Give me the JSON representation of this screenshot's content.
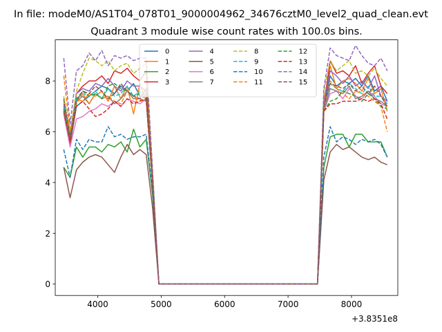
{
  "chart_data": {
    "type": "line",
    "suptitle": "In file: modeM0/AS1T04_078T01_9000004962_34676cztM0_level2_quad_clean.evt",
    "title": "Quadrant 3 module wise count rates with 100.0s bins.",
    "xlabel": "",
    "ylabel": "",
    "x_offset_label": "+3.8351e8",
    "xlim": [
      3330,
      8730
    ],
    "ylim": [
      -0.45,
      9.62
    ],
    "x_ticks": [
      4000,
      5000,
      6000,
      7000,
      8000
    ],
    "x_tick_labels": [
      "4000",
      "5000",
      "6000",
      "7000",
      "8000"
    ],
    "y_ticks": [
      0,
      2,
      4,
      6,
      8
    ],
    "y_tick_labels": [
      "0",
      "2",
      "4",
      "6",
      "8"
    ],
    "legend_location": "upper-center",
    "x": [
      3464,
      3564,
      3664,
      3764,
      3864,
      3964,
      4064,
      4164,
      4264,
      4364,
      4464,
      4564,
      4664,
      4764,
      4864,
      4964,
      5064,
      5164,
      5264,
      5364,
      5464,
      5564,
      5664,
      5764,
      5864,
      5964,
      6064,
      6164,
      6264,
      6364,
      6464,
      6564,
      6664,
      6764,
      6864,
      6964,
      7064,
      7164,
      7264,
      7364,
      7464,
      7564,
      7664,
      7764,
      7864,
      7964,
      8064,
      8164,
      8264,
      8364,
      8464,
      8564
    ],
    "series": [
      {
        "name": "0",
        "color": "#1f77b4",
        "dash": "solid",
        "values": [
          7.0,
          5.5,
          7.0,
          7.2,
          7.4,
          7.6,
          7.8,
          7.7,
          7.5,
          7.8,
          7.6,
          7.9,
          7.4,
          7.5,
          4.0,
          0.0,
          0,
          0,
          0,
          0,
          0,
          0,
          0,
          0,
          0,
          0,
          0,
          0,
          0,
          0,
          0,
          0,
          0,
          0,
          0,
          0,
          0,
          0,
          0,
          0,
          0.0,
          7.0,
          8.2,
          7.8,
          8.0,
          7.9,
          8.1,
          7.8,
          8.2,
          7.6,
          7.8,
          7.2
        ]
      },
      {
        "name": "1",
        "color": "#ff7f0e",
        "dash": "solid",
        "values": [
          7.2,
          5.8,
          7.3,
          7.2,
          7.5,
          7.4,
          7.6,
          7.2,
          7.8,
          7.3,
          7.8,
          6.7,
          7.9,
          7.2,
          4.0,
          0.0,
          0,
          0,
          0,
          0,
          0,
          0,
          0,
          0,
          0,
          0,
          0,
          0,
          0,
          0,
          0,
          0,
          0,
          0,
          0,
          0,
          0,
          0,
          0,
          0,
          0.0,
          7.2,
          8.6,
          7.7,
          8.0,
          8.1,
          7.9,
          7.6,
          8.1,
          7.5,
          7.7,
          6.8
        ]
      },
      {
        "name": "2",
        "color": "#2ca02c",
        "dash": "solid",
        "values": [
          4.6,
          4.2,
          5.4,
          5.0,
          5.4,
          5.4,
          5.2,
          5.5,
          5.4,
          5.6,
          5.2,
          6.1,
          5.4,
          5.7,
          3.5,
          0.0,
          0,
          0,
          0,
          0,
          0,
          0,
          0,
          0,
          0,
          0,
          0,
          0,
          0,
          0,
          0,
          0,
          0,
          0,
          0,
          0,
          0,
          0,
          0,
          0,
          0.0,
          4.6,
          5.8,
          5.9,
          5.9,
          5.4,
          5.9,
          5.9,
          5.6,
          5.6,
          5.6,
          5.0
        ]
      },
      {
        "name": "3",
        "color": "#d62728",
        "dash": "solid",
        "values": [
          6.9,
          5.5,
          7.5,
          7.8,
          8.0,
          8.0,
          8.2,
          7.9,
          8.4,
          8.3,
          8.5,
          8.2,
          8.0,
          8.4,
          4.1,
          0.0,
          0,
          0,
          0,
          0,
          0,
          0,
          0,
          0,
          0,
          0,
          0,
          0,
          0,
          0,
          0,
          0,
          0,
          0,
          0,
          0,
          0,
          0,
          0,
          0,
          0.0,
          7.0,
          8.8,
          8.3,
          8.4,
          8.2,
          8.6,
          7.9,
          8.3,
          8.6,
          7.8,
          7.5
        ]
      },
      {
        "name": "4",
        "color": "#9467bd",
        "dash": "solid",
        "values": [
          7.1,
          5.9,
          7.5,
          7.7,
          7.6,
          7.9,
          7.8,
          8.1,
          7.8,
          7.6,
          8.0,
          7.8,
          7.8,
          7.6,
          4.1,
          0.0,
          0,
          0,
          0,
          0,
          0,
          0,
          0,
          0,
          0,
          0,
          0,
          0,
          0,
          0,
          0,
          0,
          0,
          0,
          0,
          0,
          0,
          0,
          0,
          0,
          0.0,
          7.1,
          8.4,
          8.2,
          7.9,
          8.2,
          7.8,
          8.0,
          7.7,
          8.2,
          7.4,
          7.2
        ]
      },
      {
        "name": "5",
        "color": "#8c564b",
        "dash": "solid",
        "values": [
          4.6,
          3.4,
          4.5,
          4.8,
          5.0,
          5.1,
          5.0,
          4.7,
          4.4,
          5.0,
          5.5,
          5.1,
          5.3,
          5.1,
          3.0,
          0.0,
          0,
          0,
          0,
          0,
          0,
          0,
          0,
          0,
          0,
          0,
          0,
          0,
          0,
          0,
          0,
          0,
          0,
          0,
          0,
          0,
          0,
          0,
          0,
          0,
          0.0,
          4.1,
          5.2,
          5.5,
          5.3,
          5.4,
          5.2,
          5.0,
          4.9,
          5.0,
          4.8,
          4.7
        ]
      },
      {
        "name": "6",
        "color": "#e377c2",
        "dash": "solid",
        "values": [
          6.7,
          5.4,
          6.5,
          6.6,
          6.8,
          6.9,
          7.1,
          7.0,
          7.2,
          7.0,
          7.3,
          7.2,
          7.1,
          7.3,
          4.0,
          0.0,
          0,
          0,
          0,
          0,
          0,
          0,
          0,
          0,
          0,
          0,
          0,
          0,
          0,
          0,
          0,
          0,
          0,
          0,
          0,
          0,
          0,
          0,
          0,
          0,
          0.0,
          6.8,
          7.5,
          7.6,
          7.3,
          7.7,
          7.4,
          7.3,
          7.6,
          7.4,
          7.1,
          7.0
        ]
      },
      {
        "name": "7",
        "color": "#7f7f7f",
        "dash": "solid",
        "values": [
          6.8,
          5.6,
          7.2,
          7.4,
          7.1,
          7.5,
          7.3,
          7.4,
          7.1,
          7.3,
          7.6,
          7.3,
          7.3,
          7.2,
          3.9,
          0.0,
          0,
          0,
          0,
          0,
          0,
          0,
          0,
          0,
          0,
          0,
          0,
          0,
          0,
          0,
          0,
          0,
          0,
          0,
          0,
          0,
          0,
          0,
          0,
          0,
          0.0,
          6.8,
          7.7,
          7.6,
          7.5,
          7.8,
          7.3,
          7.4,
          7.6,
          7.3,
          7.2,
          7.0
        ]
      },
      {
        "name": "8",
        "color": "#bcbd22",
        "dash": "dashed",
        "values": [
          7.4,
          6.0,
          7.6,
          8.3,
          8.9,
          8.8,
          8.6,
          8.8,
          8.4,
          8.6,
          8.7,
          8.3,
          8.5,
          8.7,
          4.4,
          0.0,
          0,
          0,
          0,
          0,
          0,
          0,
          0,
          0,
          0,
          0,
          0,
          0,
          0,
          0,
          0,
          0,
          0,
          0,
          0,
          0,
          0,
          0,
          0,
          0,
          0.0,
          7.6,
          8.8,
          8.4,
          8.6,
          8.8,
          8.3,
          8.4,
          8.2,
          8.5,
          8.1,
          7.8
        ]
      },
      {
        "name": "9",
        "color": "#17becf",
        "dash": "dashed",
        "values": [
          7.0,
          5.6,
          7.3,
          7.5,
          7.4,
          7.6,
          7.3,
          7.7,
          7.4,
          7.5,
          7.8,
          7.4,
          7.6,
          7.3,
          4.0,
          0.0,
          0,
          0,
          0,
          0,
          0,
          0,
          0,
          0,
          0,
          0,
          0,
          0,
          0,
          0,
          0,
          0,
          0,
          0,
          0,
          0,
          0,
          0,
          0,
          0,
          0.0,
          6.9,
          7.9,
          7.7,
          7.6,
          7.9,
          7.7,
          7.5,
          7.8,
          7.4,
          7.4,
          7.1
        ]
      },
      {
        "name": "10",
        "color": "#1f77b4",
        "dash": "dashed",
        "values": [
          5.3,
          4.2,
          5.7,
          5.3,
          5.7,
          5.6,
          5.6,
          6.2,
          5.8,
          5.9,
          5.7,
          5.8,
          5.8,
          5.9,
          3.6,
          0.0,
          0,
          0,
          0,
          0,
          0,
          0,
          0,
          0,
          0,
          0,
          0,
          0,
          0,
          0,
          0,
          0,
          0,
          0,
          0,
          0,
          0,
          0,
          0,
          0,
          0.0,
          5.0,
          6.2,
          5.6,
          5.8,
          5.7,
          5.5,
          5.7,
          5.6,
          5.7,
          5.5,
          5.0
        ]
      },
      {
        "name": "11",
        "color": "#ff7f0e",
        "dash": "dashed",
        "values": [
          8.2,
          6.0,
          7.1,
          7.5,
          7.1,
          7.5,
          7.3,
          7.4,
          7.2,
          7.1,
          7.6,
          7.4,
          7.2,
          7.5,
          4.0,
          0.0,
          0,
          0,
          0,
          0,
          0,
          0,
          0,
          0,
          0,
          0,
          0,
          0,
          0,
          0,
          0,
          0,
          0,
          0,
          0,
          0,
          0,
          0,
          0,
          0,
          0.0,
          6.9,
          8.0,
          7.7,
          7.5,
          7.3,
          7.6,
          7.5,
          7.4,
          7.2,
          7.0,
          6.0
        ]
      },
      {
        "name": "12",
        "color": "#2ca02c",
        "dash": "dashed",
        "values": [
          6.9,
          5.7,
          7.3,
          7.6,
          7.4,
          7.5,
          7.3,
          7.8,
          7.9,
          7.7,
          7.6,
          7.4,
          7.5,
          7.6,
          3.9,
          0.0,
          0,
          0,
          0,
          0,
          0,
          0,
          0,
          0,
          0,
          0,
          0,
          0,
          0,
          0,
          0,
          0,
          0,
          0,
          0,
          0,
          0,
          0,
          0,
          0,
          0.0,
          6.8,
          7.2,
          7.3,
          7.6,
          7.5,
          7.4,
          7.2,
          7.5,
          7.3,
          7.0,
          6.9
        ]
      },
      {
        "name": "13",
        "color": "#d62728",
        "dash": "dashed",
        "values": [
          6.8,
          5.6,
          7.0,
          7.2,
          6.9,
          6.6,
          6.7,
          6.9,
          7.2,
          7.0,
          7.3,
          7.1,
          7.2,
          7.3,
          4.0,
          0.0,
          0,
          0,
          0,
          0,
          0,
          0,
          0,
          0,
          0,
          0,
          0,
          0,
          0,
          0,
          0,
          0,
          0,
          0,
          0,
          0,
          0,
          0,
          0,
          0,
          0.0,
          6.8,
          7.1,
          7.1,
          7.2,
          7.2,
          7.2,
          7.3,
          7.2,
          7.3,
          7.1,
          6.5
        ]
      },
      {
        "name": "14",
        "color": "#9467bd",
        "dash": "dashed",
        "values": [
          8.9,
          6.3,
          8.4,
          8.6,
          9.1,
          8.8,
          9.2,
          8.6,
          9.0,
          8.9,
          9.0,
          8.8,
          8.9,
          8.9,
          4.5,
          0.0,
          0,
          0,
          0,
          0,
          0,
          0,
          0,
          0,
          0,
          0,
          0,
          0,
          0,
          0,
          0,
          0,
          0,
          0,
          0,
          0,
          0,
          0,
          0,
          0,
          0.0,
          7.7,
          9.3,
          9.0,
          8.9,
          8.8,
          9.4,
          9.0,
          8.7,
          8.6,
          8.9,
          8.4
        ]
      },
      {
        "name": "15",
        "color": "#8c564b",
        "dash": "dashed",
        "values": [
          7.3,
          5.8,
          7.2,
          7.6,
          7.5,
          7.8,
          7.6,
          7.3,
          7.5,
          7.9,
          7.6,
          7.4,
          7.3,
          7.7,
          4.1,
          0.0,
          0,
          0,
          0,
          0,
          0,
          0,
          0,
          0,
          0,
          0,
          0,
          0,
          0,
          0,
          0,
          0,
          0,
          0,
          0,
          0,
          0,
          0,
          0,
          0,
          0.0,
          7.0,
          7.9,
          7.8,
          7.7,
          7.9,
          7.6,
          7.8,
          7.5,
          7.8,
          7.4,
          7.0
        ]
      }
    ]
  }
}
